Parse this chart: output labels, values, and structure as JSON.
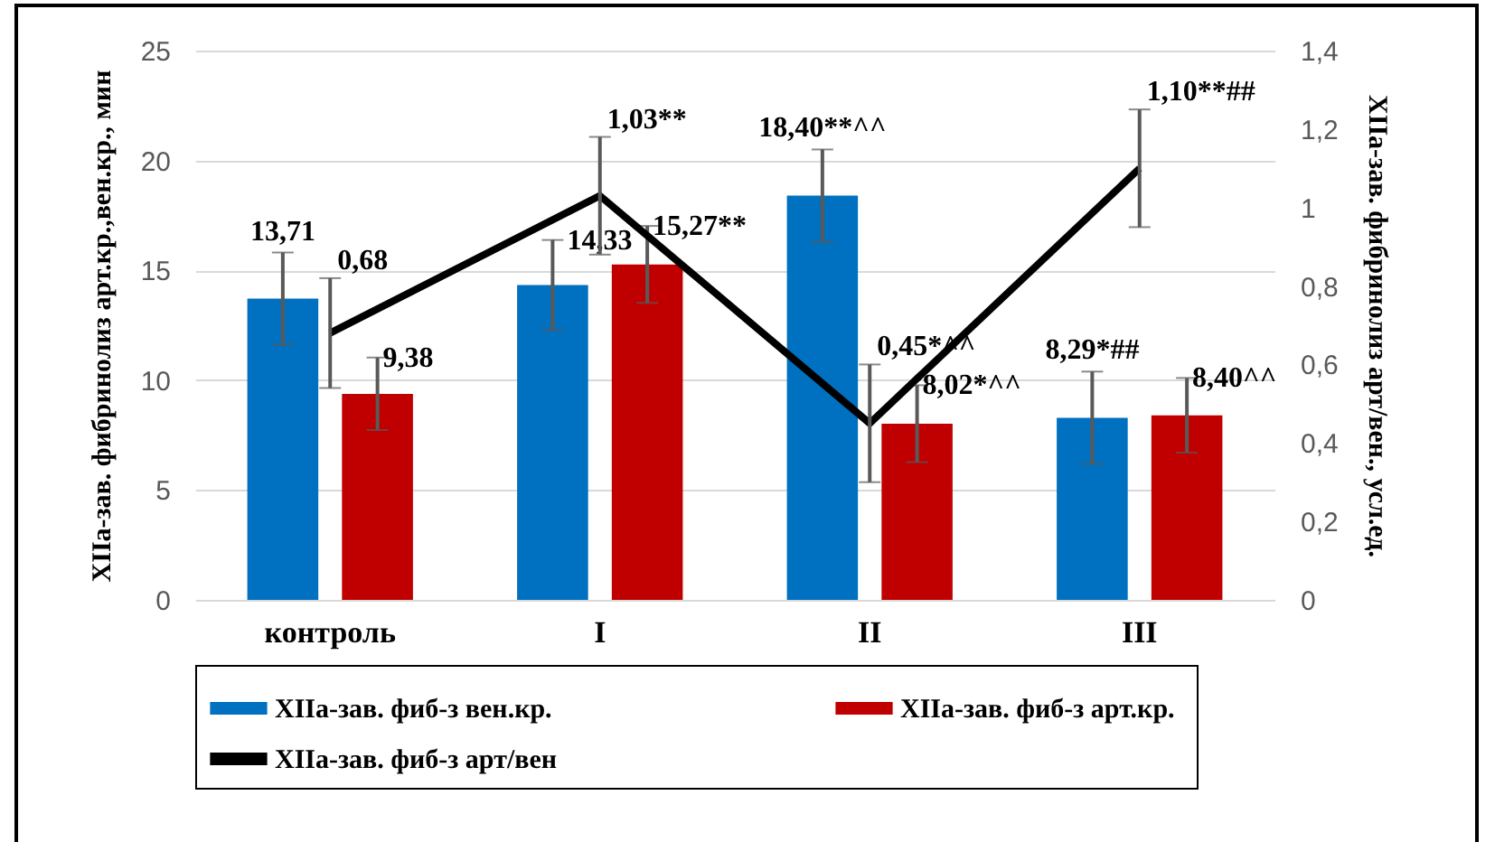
{
  "chart_data": {
    "type": "bar",
    "categories": [
      "контроль",
      "I",
      "II",
      "III"
    ],
    "ylabel": "XIIa-зав. фибринолиз арт.кр.,вен.кр., мин",
    "y2label": "XIIa-зав. фибринолиз арт/вен., усл.ед.",
    "ylim": [
      0,
      25
    ],
    "yticks": [
      0,
      5,
      10,
      15,
      20,
      25
    ],
    "y2lim": [
      0,
      1.4
    ],
    "y2ticks": [
      0,
      {
        "value": 0.2,
        "label": "0,2"
      },
      {
        "value": 0.4,
        "label": "0,4"
      },
      {
        "value": 0.6,
        "label": "0,6"
      },
      {
        "value": 0.8,
        "label": "0,8"
      },
      1,
      {
        "value": 1.2,
        "label": "1,2"
      },
      {
        "value": 1.4,
        "label": "1,4"
      }
    ],
    "grid": "y",
    "legend": "bottom",
    "line_style": "solid",
    "series": [
      {
        "name": "XIIa-зав.  фиб-з вен.кр.",
        "color": "#0070c0",
        "values": [
          13.71,
          14.33,
          18.4,
          8.29
        ],
        "errors": [
          2.1,
          2.05,
          2.1,
          2.1
        ],
        "value_labels": [
          "13,71",
          "14,33",
          "18,40**^^",
          "8,29*##"
        ]
      },
      {
        "name": "XIIa-зав.  фиб-з арт.кр.",
        "color": "#c00000",
        "values": [
          9.38,
          15.27,
          8.02,
          8.4
        ],
        "errors": [
          1.65,
          1.75,
          1.75,
          1.7
        ],
        "value_labels": [
          "9,38",
          "15,27**",
          "8,02*^^",
          "8,40^^"
        ]
      },
      {
        "name": "XIIa-зав.  фиб-з арт/вен",
        "type": "line",
        "axis": "y2",
        "color": "#000000",
        "values": [
          0.68,
          1.03,
          0.45,
          1.1
        ],
        "errors": [
          0.14,
          0.15,
          0.15,
          0.15
        ],
        "value_labels": [
          "0,68",
          "1,03**",
          "0,45*^^",
          "1,10**##"
        ]
      }
    ]
  }
}
